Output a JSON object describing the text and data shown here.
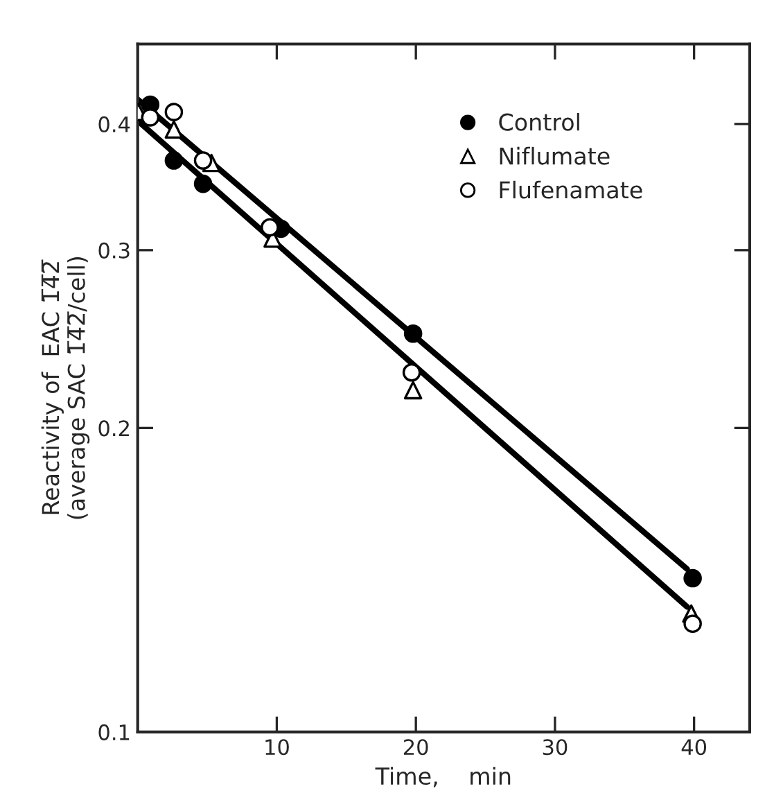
{
  "chart_data": {
    "type": "scatter",
    "xlabel": "Time,    min",
    "ylabel": "Reactivity of  EAC 1̅4̅2̅\n(average SAC 1̅4̅2̅/cell)",
    "log": "y",
    "xlim": [
      0,
      44
    ],
    "ylim": [
      0.1,
      0.48
    ],
    "xticks": [
      10,
      20,
      30,
      40
    ],
    "yticks": [
      0.1,
      0.2,
      0.3,
      0.4
    ],
    "grid": false,
    "legend": "top right",
    "series": [
      {
        "name": "Control",
        "marker": "circle",
        "color": "#000000",
        "x": [
          0.9,
          2.6,
          4.7,
          10.3,
          19.8,
          39.9
        ],
        "values": [
          0.418,
          0.368,
          0.349,
          0.315,
          0.248,
          0.142
        ]
      },
      {
        "name": "Niflumate",
        "marker": "triangle",
        "color": "#ffffff",
        "x": [
          0.05,
          2.6,
          5.3,
          9.7,
          19.8,
          39.8
        ],
        "values": [
          0.411,
          0.395,
          0.366,
          0.308,
          0.218,
          0.131
        ]
      },
      {
        "name": "Flufenamate",
        "marker": "circle",
        "color": "#ffffff",
        "x": [
          0.9,
          2.6,
          4.7,
          9.5,
          19.7,
          39.9
        ],
        "values": [
          0.406,
          0.411,
          0.368,
          0.316,
          0.227,
          0.128
        ]
      },
      {
        "type": "line",
        "line_style": "solid",
        "color": "#000000",
        "x": [
          0,
          39.5
        ],
        "values": [
          0.423,
          0.145
        ]
      },
      {
        "type": "line",
        "line_style": "solid",
        "color": "#000000",
        "x": [
          0,
          39.5
        ],
        "values": [
          0.403,
          0.133
        ]
      }
    ]
  }
}
